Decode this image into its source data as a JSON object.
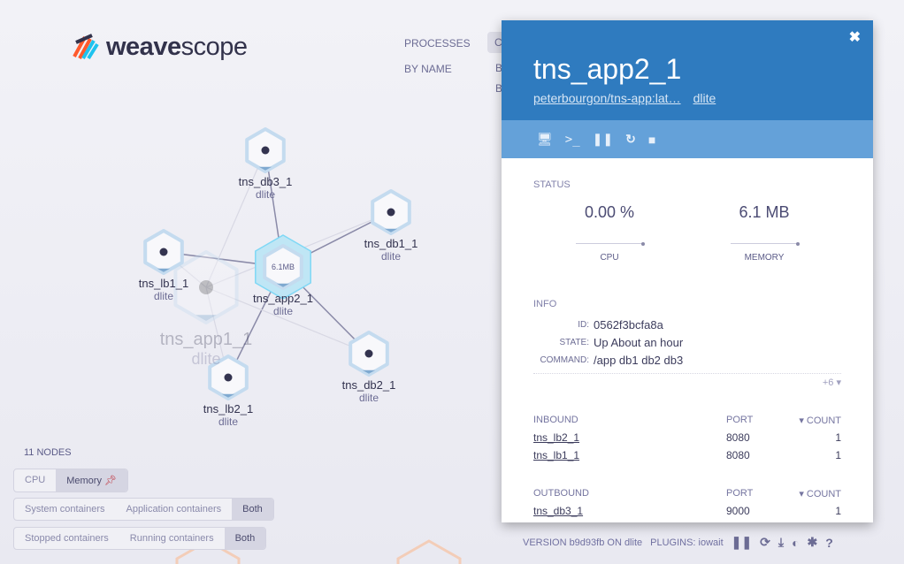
{
  "logo": {
    "text_bold": "weave",
    "text_light": "scope"
  },
  "topology": [
    {
      "label": "PROCESSES",
      "sub": [
        "BY NAME"
      ]
    },
    {
      "label": "CONTAINERS",
      "sub": [
        "BY IMAGE",
        "BY HOSTNAME"
      ],
      "selected": true
    }
  ],
  "graph": {
    "nodes": [
      {
        "id": "tns_app1_1",
        "label": "tns_app1_1",
        "sub": "dlite",
        "faded": true
      },
      {
        "id": "tns_db3_1",
        "label": "tns_db3_1",
        "sub": "dlite"
      },
      {
        "id": "tns_db1_1",
        "label": "tns_db1_1",
        "sub": "dlite"
      },
      {
        "id": "tns_lb1_1",
        "label": "tns_lb1_1",
        "sub": "dlite"
      },
      {
        "id": "tns_app2_1",
        "label": "tns_app2_1",
        "sub": "dlite",
        "selected": true,
        "metric": "6.1MB"
      },
      {
        "id": "tns_lb2_1",
        "label": "tns_lb2_1",
        "sub": "dlite"
      },
      {
        "id": "tns_db2_1",
        "label": "tns_db2_1",
        "sub": "dlite"
      }
    ],
    "edges": [
      [
        "tns_app2_1",
        "tns_db3_1"
      ],
      [
        "tns_app2_1",
        "tns_db1_1"
      ],
      [
        "tns_lb1_1",
        "tns_app2_1"
      ],
      [
        "tns_lb2_1",
        "tns_app2_1"
      ],
      [
        "tns_app2_1",
        "tns_db2_1"
      ],
      [
        "tns_app1_1",
        "tns_db3_1"
      ],
      [
        "tns_app1_1",
        "tns_db1_1"
      ],
      [
        "tns_app1_1",
        "tns_lb1_1"
      ],
      [
        "tns_app1_1",
        "tns_lb2_1"
      ],
      [
        "tns_app1_1",
        "tns_db2_1"
      ]
    ]
  },
  "controls": {
    "node_count": "11 NODES",
    "metric": [
      "CPU",
      "Memory"
    ],
    "metric_selected": "Memory",
    "pin_icon": "pin-icon",
    "filter1": [
      "System containers",
      "Application containers",
      "Both"
    ],
    "filter2": [
      "Stopped containers",
      "Running containers",
      "Both"
    ]
  },
  "panel": {
    "title": "tns_app2_1",
    "image_link": "peterbourgon/tns-app:lat…",
    "host_link": "dlite",
    "close": "✖",
    "actions": [
      "monitor-icon",
      "terminal-icon",
      "pause-icon",
      "restart-icon",
      "stop-icon"
    ],
    "status_label": "STATUS",
    "cpu": {
      "value": "0.00 %",
      "label": "CPU"
    },
    "memory": {
      "value": "6.1 MB",
      "label": "MEMORY"
    },
    "info_label": "INFO",
    "info": [
      {
        "k": "ID:",
        "v": "0562f3bcfa8a"
      },
      {
        "k": "STATE:",
        "v": "Up About an hour"
      },
      {
        "k": "COMMAND:",
        "v": "/app db1 db2 db3"
      }
    ],
    "more": "+6 ▾",
    "inbound": {
      "h": [
        "INBOUND",
        "PORT",
        "▾ COUNT"
      ],
      "rows": [
        [
          "tns_lb2_1",
          "8080",
          "1"
        ],
        [
          "tns_lb1_1",
          "8080",
          "1"
        ]
      ]
    },
    "outbound": {
      "h": [
        "OUTBOUND",
        "PORT",
        "▾ COUNT"
      ],
      "rows": [
        [
          "tns_db3_1",
          "9000",
          "1"
        ]
      ]
    }
  },
  "footer": {
    "version": "VERSION b9d93fb ON dlite",
    "plugins": "PLUGINS: iowait"
  },
  "colors": {
    "accent": "#2f7bbf",
    "toolbar": "#64a1d9",
    "selected_halo": "#7fd8f5"
  }
}
